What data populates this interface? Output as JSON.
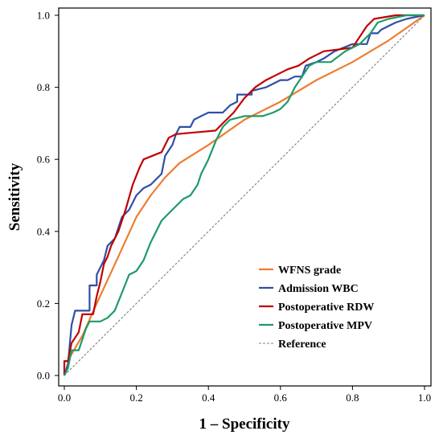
{
  "chart_data": {
    "type": "line",
    "title": "",
    "xlabel": "1 – Specificity",
    "ylabel": "Sensitivity",
    "xlim": [
      0,
      1
    ],
    "ylim": [
      0,
      1
    ],
    "grid": false,
    "legend_position": "bottom-right",
    "x_ticks": [
      "0.0",
      "0.2",
      "0.4",
      "0.6",
      "0.8",
      "1.0"
    ],
    "y_ticks": [
      "0.0",
      "0.2",
      "0.4",
      "0.6",
      "0.8",
      "1.0"
    ],
    "series": [
      {
        "name": "WFNS grade",
        "color": "#ed7d31",
        "style": "solid",
        "points": [
          [
            0,
            0
          ],
          [
            0.015,
            0.05
          ],
          [
            0.05,
            0.11
          ],
          [
            0.09,
            0.2
          ],
          [
            0.15,
            0.33
          ],
          [
            0.2,
            0.44
          ],
          [
            0.24,
            0.5
          ],
          [
            0.28,
            0.55
          ],
          [
            0.32,
            0.59
          ],
          [
            0.4,
            0.64
          ],
          [
            0.5,
            0.71
          ],
          [
            0.6,
            0.76
          ],
          [
            0.7,
            0.82
          ],
          [
            0.8,
            0.87
          ],
          [
            0.9,
            0.93
          ],
          [
            1,
            1
          ]
        ]
      },
      {
        "name": "Admission WBC",
        "color": "#2f4fa8",
        "style": "solid",
        "points": [
          [
            0,
            0
          ],
          [
            0.01,
            0.03
          ],
          [
            0.02,
            0.14
          ],
          [
            0.03,
            0.18
          ],
          [
            0.07,
            0.18
          ],
          [
            0.07,
            0.25
          ],
          [
            0.09,
            0.25
          ],
          [
            0.09,
            0.28
          ],
          [
            0.1,
            0.3
          ],
          [
            0.11,
            0.32
          ],
          [
            0.12,
            0.36
          ],
          [
            0.14,
            0.38
          ],
          [
            0.15,
            0.41
          ],
          [
            0.16,
            0.44
          ],
          [
            0.17,
            0.45
          ],
          [
            0.18,
            0.46
          ],
          [
            0.19,
            0.48
          ],
          [
            0.2,
            0.5
          ],
          [
            0.22,
            0.52
          ],
          [
            0.24,
            0.53
          ],
          [
            0.26,
            0.55
          ],
          [
            0.27,
            0.56
          ],
          [
            0.28,
            0.61
          ],
          [
            0.3,
            0.64
          ],
          [
            0.31,
            0.67
          ],
          [
            0.32,
            0.69
          ],
          [
            0.35,
            0.69
          ],
          [
            0.36,
            0.71
          ],
          [
            0.38,
            0.72
          ],
          [
            0.4,
            0.73
          ],
          [
            0.44,
            0.73
          ],
          [
            0.46,
            0.75
          ],
          [
            0.48,
            0.76
          ],
          [
            0.48,
            0.78
          ],
          [
            0.52,
            0.78
          ],
          [
            0.52,
            0.79
          ],
          [
            0.56,
            0.8
          ],
          [
            0.58,
            0.81
          ],
          [
            0.6,
            0.82
          ],
          [
            0.62,
            0.82
          ],
          [
            0.64,
            0.83
          ],
          [
            0.66,
            0.83
          ],
          [
            0.67,
            0.86
          ],
          [
            0.7,
            0.87
          ],
          [
            0.72,
            0.88
          ],
          [
            0.75,
            0.9
          ],
          [
            0.8,
            0.92
          ],
          [
            0.84,
            0.92
          ],
          [
            0.85,
            0.95
          ],
          [
            0.87,
            0.95
          ],
          [
            0.88,
            0.96
          ],
          [
            0.9,
            0.97
          ],
          [
            0.92,
            0.98
          ],
          [
            0.95,
            0.99
          ],
          [
            1,
            1
          ]
        ]
      },
      {
        "name": "Postoperative RDW",
        "color": "#c00000",
        "style": "solid",
        "points": [
          [
            0,
            0
          ],
          [
            0,
            0.04
          ],
          [
            0.01,
            0.04
          ],
          [
            0.02,
            0.09
          ],
          [
            0.04,
            0.12
          ],
          [
            0.05,
            0.17
          ],
          [
            0.08,
            0.17
          ],
          [
            0.09,
            0.22
          ],
          [
            0.1,
            0.26
          ],
          [
            0.11,
            0.31
          ],
          [
            0.12,
            0.33
          ],
          [
            0.13,
            0.36
          ],
          [
            0.15,
            0.4
          ],
          [
            0.17,
            0.46
          ],
          [
            0.19,
            0.53
          ],
          [
            0.21,
            0.58
          ],
          [
            0.22,
            0.6
          ],
          [
            0.27,
            0.62
          ],
          [
            0.29,
            0.66
          ],
          [
            0.31,
            0.67
          ],
          [
            0.42,
            0.68
          ],
          [
            0.44,
            0.7
          ],
          [
            0.47,
            0.73
          ],
          [
            0.5,
            0.77
          ],
          [
            0.53,
            0.8
          ],
          [
            0.56,
            0.82
          ],
          [
            0.6,
            0.84
          ],
          [
            0.62,
            0.85
          ],
          [
            0.65,
            0.86
          ],
          [
            0.68,
            0.88
          ],
          [
            0.72,
            0.9
          ],
          [
            0.8,
            0.91
          ],
          [
            0.84,
            0.97
          ],
          [
            0.86,
            0.99
          ],
          [
            0.92,
            1
          ],
          [
            1,
            1
          ]
        ]
      },
      {
        "name": "Postoperative MPV",
        "color": "#1f9a6a",
        "style": "solid",
        "points": [
          [
            0,
            0
          ],
          [
            0.01,
            0.02
          ],
          [
            0.02,
            0.07
          ],
          [
            0.04,
            0.07
          ],
          [
            0.05,
            0.1
          ],
          [
            0.06,
            0.13
          ],
          [
            0.07,
            0.15
          ],
          [
            0.1,
            0.15
          ],
          [
            0.12,
            0.16
          ],
          [
            0.14,
            0.18
          ],
          [
            0.16,
            0.23
          ],
          [
            0.18,
            0.28
          ],
          [
            0.2,
            0.29
          ],
          [
            0.22,
            0.32
          ],
          [
            0.24,
            0.37
          ],
          [
            0.27,
            0.43
          ],
          [
            0.29,
            0.45
          ],
          [
            0.31,
            0.47
          ],
          [
            0.33,
            0.49
          ],
          [
            0.35,
            0.5
          ],
          [
            0.37,
            0.53
          ],
          [
            0.38,
            0.56
          ],
          [
            0.39,
            0.58
          ],
          [
            0.4,
            0.6
          ],
          [
            0.42,
            0.65
          ],
          [
            0.44,
            0.69
          ],
          [
            0.46,
            0.71
          ],
          [
            0.5,
            0.72
          ],
          [
            0.55,
            0.72
          ],
          [
            0.58,
            0.73
          ],
          [
            0.6,
            0.74
          ],
          [
            0.62,
            0.76
          ],
          [
            0.64,
            0.8
          ],
          [
            0.66,
            0.83
          ],
          [
            0.68,
            0.86
          ],
          [
            0.7,
            0.87
          ],
          [
            0.74,
            0.87
          ],
          [
            0.78,
            0.9
          ],
          [
            0.82,
            0.92
          ],
          [
            0.85,
            0.95
          ],
          [
            0.87,
            0.98
          ],
          [
            0.9,
            0.99
          ],
          [
            0.95,
            1
          ],
          [
            1,
            1
          ]
        ]
      },
      {
        "name": "Reference",
        "color": "#808080",
        "style": "dashed",
        "points": [
          [
            0,
            0
          ],
          [
            1,
            1
          ]
        ]
      }
    ]
  }
}
